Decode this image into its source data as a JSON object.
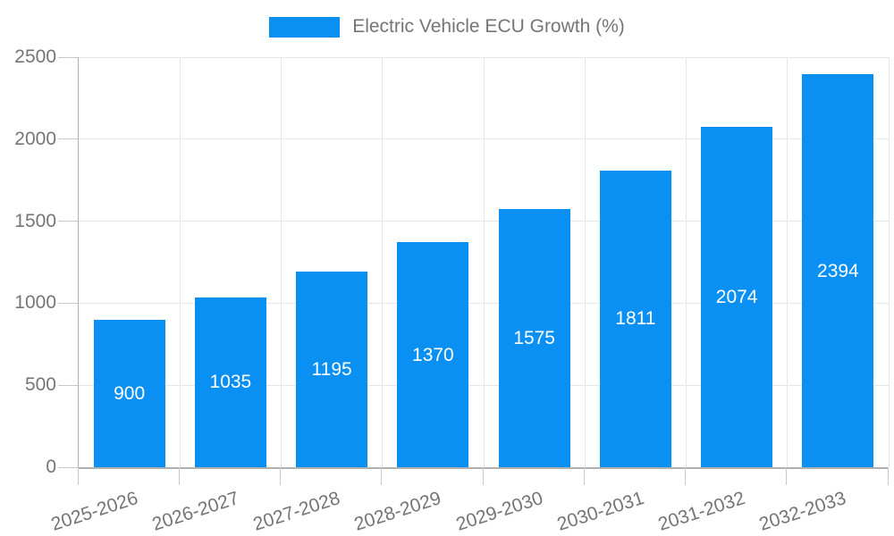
{
  "chart_data": {
    "type": "bar",
    "series_name": "Electric Vehicle ECU Growth (%)",
    "categories": [
      "2025-2026",
      "2026-2027",
      "2027-2028",
      "2028-2029",
      "2029-2030",
      "2030-2031",
      "2031-2032",
      "2032-2033"
    ],
    "values": [
      900,
      1035,
      1195,
      1370,
      1575,
      1811,
      2074,
      2394
    ],
    "value_labels_shown": true,
    "yticks": [
      0,
      500,
      1000,
      1500,
      2000,
      2500
    ],
    "ylim": [
      0,
      2500
    ],
    "xlabel": "",
    "ylabel": "",
    "grid": true,
    "legend_position": "top-center",
    "colors": {
      "bar": "#0a90f2",
      "gridline": "#e6e6e6",
      "axis_line": "#b0b0b0",
      "tick": "#c9c9c9",
      "axis_text": "#757575",
      "value_label": "#ffffff"
    }
  }
}
